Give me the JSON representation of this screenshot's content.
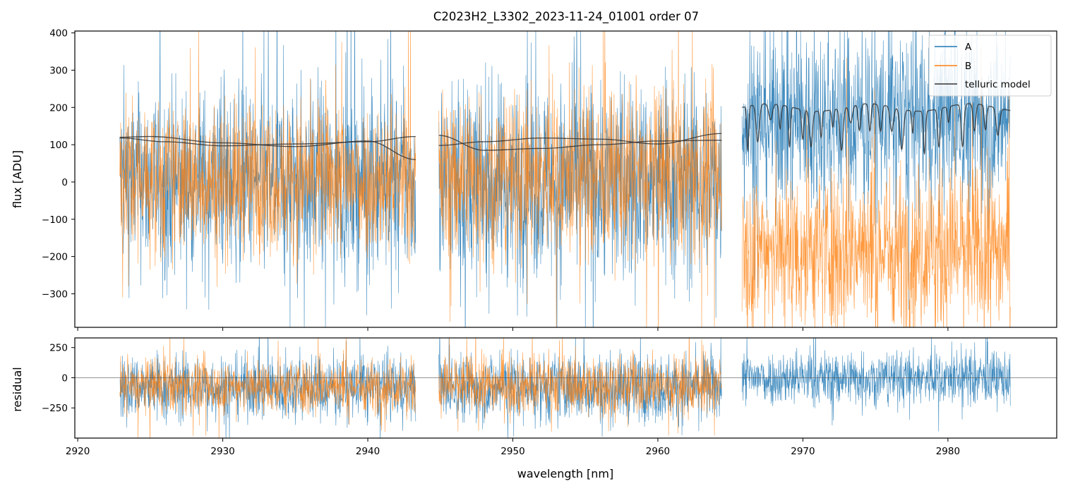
{
  "chart_data": [
    {
      "panel": "main",
      "type": "line",
      "title": "C2023H2_L3302_2023-11-24_01001  order 07",
      "xlabel": "",
      "ylabel": "flux [ADU]",
      "xlim": [
        2919.8,
        2987.5
      ],
      "ylim": [
        -390,
        405
      ],
      "yticks": [
        -300,
        -200,
        -100,
        0,
        100,
        200,
        300,
        400
      ],
      "xticks": [
        2920,
        2930,
        2940,
        2950,
        2960,
        2970,
        2980
      ],
      "tick_labels_shown": "y",
      "legend": {
        "placement": "top-right",
        "entries": [
          "A",
          "B",
          "telluric model"
        ]
      },
      "segments": [
        {
          "x": [
            2922.9,
            2943.3
          ],
          "A_mean": 0,
          "A_noise": 120,
          "B_mean": 10,
          "B_noise": 100
        },
        {
          "x": [
            2944.9,
            2964.4
          ],
          "A_mean": 0,
          "A_noise": 130,
          "B_mean": 20,
          "B_noise": 110
        },
        {
          "x": [
            2965.8,
            2984.3
          ],
          "A_mean": 170,
          "A_noise": 120,
          "B_mean": -180,
          "B_noise": 110
        }
      ],
      "series": [
        {
          "name": "A",
          "color": "#1f77b4"
        },
        {
          "name": "B",
          "color": "#ff7f0e"
        },
        {
          "name": "telluric model",
          "color": "#333333"
        }
      ],
      "telluric_model": {
        "segment1_A": {
          "x": [
            2922.9,
            2925,
            2930,
            2935,
            2940,
            2943.3
          ],
          "y": [
            120,
            122,
            105,
            95,
            110,
            60
          ]
        },
        "segment1_B": {
          "x": [
            2922.9,
            2926,
            2930,
            2935,
            2940,
            2943.3
          ],
          "y": [
            118,
            108,
            97,
            102,
            108,
            122
          ]
        },
        "segment2_A": {
          "x": [
            2944.9,
            2948,
            2952,
            2956,
            2960,
            2964.4
          ],
          "y": [
            125,
            85,
            90,
            100,
            110,
            112
          ]
        },
        "segment2_B": {
          "x": [
            2944.9,
            2948,
            2952,
            2956,
            2960,
            2964.4
          ],
          "y": [
            98,
            108,
            118,
            115,
            102,
            130
          ]
        },
        "segment3": {
          "continuum": 190,
          "line_depth_min": 75,
          "x": [
            2965.8,
            2984.3
          ]
        }
      }
    },
    {
      "panel": "residual",
      "type": "line",
      "title": "",
      "xlabel": "wavelength [nm]",
      "ylabel": "residual",
      "xlim": [
        2919.8,
        2987.5
      ],
      "ylim": [
        -500,
        330
      ],
      "yticks": [
        -250,
        0,
        250
      ],
      "xticks": [
        2920,
        2930,
        2940,
        2950,
        2960,
        2970,
        2980
      ],
      "zero_line": true,
      "segments": [
        {
          "x": [
            2922.9,
            2943.3
          ],
          "A_mean": -80,
          "A_noise": 130,
          "B_mean": -70,
          "B_noise": 110
        },
        {
          "x": [
            2944.9,
            2964.4
          ],
          "A_mean": -80,
          "A_noise": 140,
          "B_mean": -60,
          "B_noise": 120
        },
        {
          "x": [
            2965.8,
            2984.3
          ],
          "A_mean": 0,
          "A_noise": 110,
          "B_mean": null,
          "B_noise": null
        }
      ],
      "series": [
        {
          "name": "A",
          "color": "#1f77b4"
        },
        {
          "name": "B",
          "color": "#ff7f0e"
        }
      ]
    }
  ]
}
